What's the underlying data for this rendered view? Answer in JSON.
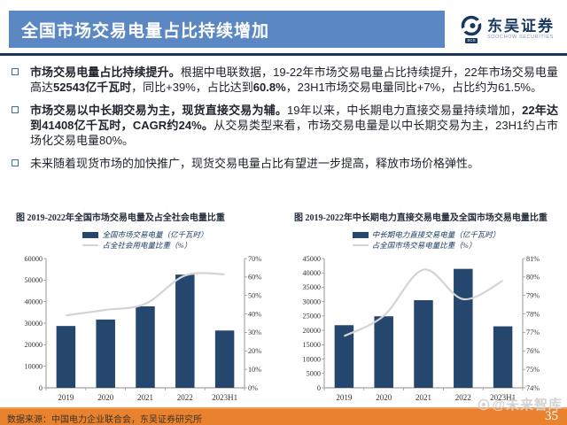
{
  "header": {
    "title": "全国市场交易电量占比持续增加",
    "logo": {
      "name": "东吴证券",
      "subtitle": "SOOCHOW SECURITIES",
      "badge": "SCS"
    }
  },
  "bullets": [
    {
      "segments": [
        {
          "text": "市场交易电量占比持续提升。",
          "bold": true
        },
        {
          "text": "根据中电联数据，19-22年市场交易电量占比持续提升，22年市场交易电量高达",
          "bold": false
        },
        {
          "text": "52543亿千瓦时",
          "bold": true
        },
        {
          "text": "，同比+39%，占比达到",
          "bold": false
        },
        {
          "text": "60.8%",
          "bold": true
        },
        {
          "text": "，23H1市场交易电量同比+7%，占比约为61.5%。",
          "bold": false
        }
      ]
    },
    {
      "segments": [
        {
          "text": "市场交易以中长期交易为主，现货直接交易为辅。",
          "bold": true
        },
        {
          "text": "19年以来，中长期电力直接交易量持续增加，",
          "bold": false
        },
        {
          "text": "22年达到41408亿千瓦时，CAGR约24%。",
          "bold": true
        },
        {
          "text": "从交易类型来看，市场交易电量是以中长期交易为主，23H1约占市场化交易电量80%。",
          "bold": false
        }
      ]
    },
    {
      "segments": [
        {
          "text": "未来随着现货市场的加快推广，现货交易电量占比有望进一步提高，释放市场价格弹性。",
          "bold": false
        }
      ]
    }
  ],
  "chart_data": [
    {
      "type": "bar+line",
      "title": "图  2019-2022年全国市场交易电量及占全社会电量比重",
      "categories": [
        "2019",
        "2020",
        "2021",
        "2022",
        "2023H1"
      ],
      "series": [
        {
          "name": "全国市场交易电量（亿千瓦时）",
          "type": "bar",
          "axis": "left",
          "values": [
            28700,
            31700,
            37800,
            52543,
            26600
          ]
        },
        {
          "name": "占全社会用电量比重（%）",
          "type": "line",
          "axis": "right",
          "values": [
            39.2,
            42.2,
            45.5,
            60.8,
            61.5
          ]
        }
      ],
      "left_axis": {
        "min": 0,
        "max": 60000,
        "step": 10000,
        "suffix": ""
      },
      "right_axis": {
        "min": 0,
        "max": 70,
        "step": 10,
        "suffix": "%"
      },
      "legend_position": "top",
      "grid": false
    },
    {
      "type": "bar+line",
      "title": "图  2019-2022年中长期电力直接交易电量及全国市场交易电量比重",
      "categories": [
        "2019",
        "2020",
        "2021",
        "2022",
        "2023H1"
      ],
      "series": [
        {
          "name": "中长期电力直接交易电量（亿千瓦时）",
          "type": "bar",
          "axis": "left",
          "values": [
            21800,
            24900,
            30500,
            41408,
            21400
          ]
        },
        {
          "name": "占全国市场交易电量比重（%）",
          "type": "line",
          "axis": "right",
          "values": [
            76.8,
            77.9,
            80.4,
            78.8,
            79.8
          ]
        }
      ],
      "left_axis": {
        "min": 0,
        "max": 45000,
        "step": 5000,
        "suffix": ""
      },
      "right_axis": {
        "min": 74,
        "max": 81,
        "step": 1,
        "suffix": "%"
      },
      "legend_position": "top",
      "grid": false
    }
  ],
  "footer": {
    "source": "数据来源：中国电力企业联合会，东吴证券研究所",
    "page": "35"
  },
  "watermark": "@未来智库",
  "colors": {
    "header_blue": "#5b87c3",
    "navy": "#17375e",
    "bar_navy": "#25476e",
    "line_gray": "#d4d4d4",
    "footer_orange": "#e9822e",
    "text": "#20242e"
  }
}
